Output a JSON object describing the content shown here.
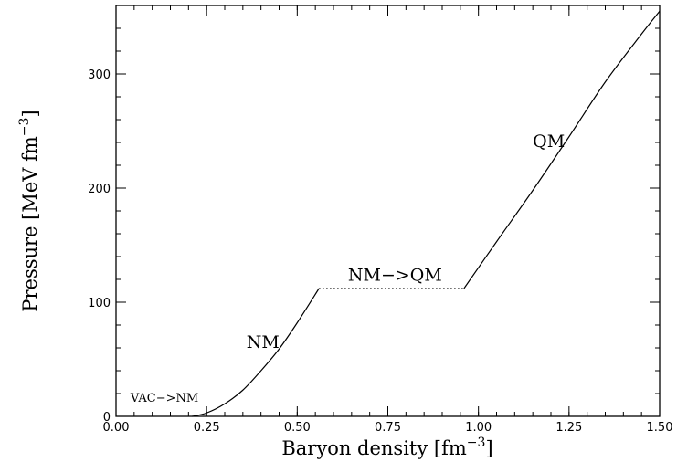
{
  "chart_data": {
    "type": "line",
    "title": "",
    "xlabel": "Baryon density [fm",
    "xlabel_sup": "−3",
    "xlabel_close": "]",
    "ylabel": "Pressure [MeV fm",
    "ylabel_sup": "−3",
    "ylabel_close": "]",
    "xlim": [
      0.0,
      1.5
    ],
    "ylim": [
      0,
      360
    ],
    "xticks": [
      0.0,
      0.25,
      0.5,
      0.75,
      1.0,
      1.25,
      1.5
    ],
    "xtick_labels": [
      "0.00",
      "0.25",
      "0.50",
      "0.75",
      "1.00",
      "1.25",
      "1.50"
    ],
    "yticks": [
      0,
      100,
      200,
      300
    ],
    "ytick_labels": [
      "0",
      "100",
      "200",
      "300"
    ],
    "grid": false,
    "series": [
      {
        "style": "solid",
        "x": [
          0.21,
          0.25,
          0.3,
          0.35,
          0.4,
          0.45,
          0.5,
          0.56
        ],
        "y": [
          0,
          3,
          11,
          23,
          40,
          59,
          82,
          112
        ]
      },
      {
        "style": "dotted",
        "x": [
          0.56,
          0.96
        ],
        "y": [
          112,
          112
        ]
      },
      {
        "style": "solid",
        "x": [
          0.96,
          1.05,
          1.15,
          1.25,
          1.35,
          1.45,
          1.5
        ],
        "y": [
          112,
          153,
          198,
          245,
          293,
          335,
          355
        ]
      }
    ],
    "annotations": [
      {
        "text": "VAC−>NM",
        "x": 0.04,
        "y": 13,
        "size": "small"
      },
      {
        "text": "NM",
        "x": 0.36,
        "y": 60,
        "size": "large"
      },
      {
        "text": "NM−>QM",
        "x": 0.64,
        "y": 119,
        "size": "large"
      },
      {
        "text": "QM",
        "x": 1.15,
        "y": 236,
        "size": "large"
      }
    ]
  }
}
